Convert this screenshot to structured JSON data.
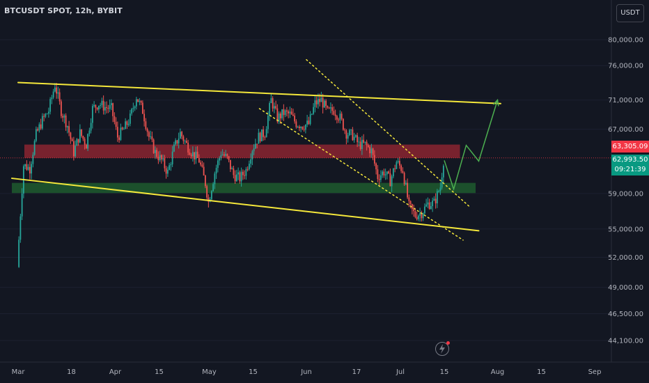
{
  "header": {
    "title": "BTCUSDT SPOT, 12h, BYBIT",
    "currency": "USDT"
  },
  "price_tags": {
    "last_price": "63,305.09",
    "bar_price": "62,993.50",
    "countdown": "09:21:39"
  },
  "icons": {
    "alert": "flash-alert-icon"
  },
  "colors": {
    "background": "#131722",
    "up": "#26a69a",
    "down": "#ef5350",
    "trendline": "#f5e83b",
    "resistance_zone": "#8b2530",
    "support_zone": "#1e5a2e",
    "projection": "#4caf50",
    "axis_text": "#b2b5be"
  },
  "chart_data": {
    "type": "candlestick",
    "title": "BTCUSDT SPOT, 12h, BYBIT",
    "y_axis": {
      "ticks": [
        "80,000.00",
        "76,000.00",
        "71,000.00",
        "67,000.00",
        "59,000.00",
        "55,000.00",
        "52,000.00",
        "49,000.00",
        "46,500.00",
        "44,100.00"
      ],
      "tick_values": [
        80000,
        76000,
        71000,
        67000,
        59000,
        55000,
        52000,
        49000,
        46500,
        44100
      ],
      "scale": "log"
    },
    "x_axis": {
      "ticks": [
        "Mar",
        "18",
        "Apr",
        "15",
        "May",
        "15",
        "Jun",
        "17",
        "Jul",
        "15",
        "Aug",
        "15",
        "Sep"
      ],
      "tick_dates": [
        "2024-03-01",
        "2024-03-18",
        "2024-04-01",
        "2024-04-15",
        "2024-05-01",
        "2024-05-15",
        "2024-06-01",
        "2024-06-17",
        "2024-07-01",
        "2024-07-15",
        "2024-08-01",
        "2024-08-15",
        "2024-09-01"
      ]
    },
    "last_price": 63305.09,
    "bar_price": 62993.5,
    "zones": [
      {
        "kind": "resistance",
        "from_date": "2024-03-03",
        "to_date": "2024-07-20",
        "low": 63305,
        "high": 65000
      },
      {
        "kind": "support",
        "from_date": "2024-02-28",
        "to_date": "2024-07-25",
        "low": 59050,
        "high": 60250
      }
    ],
    "trendlines": [
      {
        "kind": "channel-top",
        "p1": [
          "2024-03-01",
          73500
        ],
        "p2": [
          "2024-08-02",
          70500
        ]
      },
      {
        "kind": "channel-bottom",
        "p1": [
          "2024-02-28",
          60800
        ],
        "p2": [
          "2024-07-26",
          54800
        ]
      },
      {
        "kind": "falling-channel-top",
        "p1": [
          "2024-06-01",
          76900
        ],
        "p2": [
          "2024-07-23",
          57500
        ]
      },
      {
        "kind": "falling-channel-bottom",
        "p1": [
          "2024-05-17",
          69800
        ],
        "p2": [
          "2024-07-21",
          53800
        ]
      }
    ],
    "projection": [
      [
        "2024-07-15",
        63000
      ],
      [
        "2024-07-18",
        59500
      ],
      [
        "2024-07-22",
        64900
      ],
      [
        "2024-07-26",
        62900
      ],
      [
        "2024-08-01",
        71000
      ]
    ],
    "series": [
      {
        "points": [
          [
            "2024-03-01",
            51000
          ],
          [
            "2024-03-03",
            62400
          ],
          [
            "2024-03-05",
            62000
          ],
          [
            "2024-03-07",
            66300
          ],
          [
            "2024-03-09",
            68200
          ],
          [
            "2024-03-11",
            69500
          ],
          [
            "2024-03-13",
            73200
          ],
          [
            "2024-03-15",
            69500
          ],
          [
            "2024-03-17",
            67500
          ],
          [
            "2024-03-19",
            64000
          ],
          [
            "2024-03-21",
            66500
          ],
          [
            "2024-03-23",
            65000
          ],
          [
            "2024-03-25",
            69800
          ],
          [
            "2024-03-27",
            70500
          ],
          [
            "2024-03-29",
            70000
          ],
          [
            "2024-03-31",
            69800
          ],
          [
            "2024-04-02",
            66000
          ],
          [
            "2024-04-04",
            67000
          ],
          [
            "2024-04-06",
            68500
          ],
          [
            "2024-04-08",
            71500
          ],
          [
            "2024-04-10",
            69500
          ],
          [
            "2024-04-12",
            66000
          ],
          [
            "2024-04-14",
            64000
          ],
          [
            "2024-04-16",
            63000
          ],
          [
            "2024-04-18",
            61500
          ],
          [
            "2024-04-20",
            64500
          ],
          [
            "2024-04-22",
            66500
          ],
          [
            "2024-04-24",
            65000
          ],
          [
            "2024-04-26",
            63800
          ],
          [
            "2024-04-28",
            63000
          ],
          [
            "2024-04-30",
            60200
          ],
          [
            "2024-05-01",
            58000
          ],
          [
            "2024-05-03",
            61500
          ],
          [
            "2024-05-05",
            64000
          ],
          [
            "2024-05-07",
            63200
          ],
          [
            "2024-05-09",
            61200
          ],
          [
            "2024-05-11",
            60800
          ],
          [
            "2024-05-13",
            61800
          ],
          [
            "2024-05-15",
            64500
          ],
          [
            "2024-05-17",
            66000
          ],
          [
            "2024-05-19",
            66500
          ],
          [
            "2024-05-21",
            71000
          ],
          [
            "2024-05-23",
            68500
          ],
          [
            "2024-05-25",
            69200
          ],
          [
            "2024-05-27",
            69000
          ],
          [
            "2024-05-29",
            67800
          ],
          [
            "2024-05-31",
            67500
          ],
          [
            "2024-06-02",
            67700
          ],
          [
            "2024-06-04",
            70500
          ],
          [
            "2024-06-06",
            71000
          ],
          [
            "2024-06-08",
            69300
          ],
          [
            "2024-06-10",
            69600
          ],
          [
            "2024-06-12",
            68500
          ],
          [
            "2024-06-14",
            66500
          ],
          [
            "2024-06-16",
            66200
          ],
          [
            "2024-06-18",
            65000
          ],
          [
            "2024-06-20",
            65000
          ],
          [
            "2024-06-22",
            64200
          ],
          [
            "2024-06-24",
            61000
          ],
          [
            "2024-06-26",
            61600
          ],
          [
            "2024-06-28",
            60500
          ],
          [
            "2024-06-30",
            62800
          ],
          [
            "2024-07-02",
            61800
          ],
          [
            "2024-07-04",
            57500
          ],
          [
            "2024-07-06",
            56500
          ],
          [
            "2024-07-08",
            56800
          ],
          [
            "2024-07-10",
            57800
          ],
          [
            "2024-07-12",
            57900
          ],
          [
            "2024-07-14",
            59800
          ],
          [
            "2024-07-15",
            62993.5
          ]
        ]
      }
    ]
  }
}
